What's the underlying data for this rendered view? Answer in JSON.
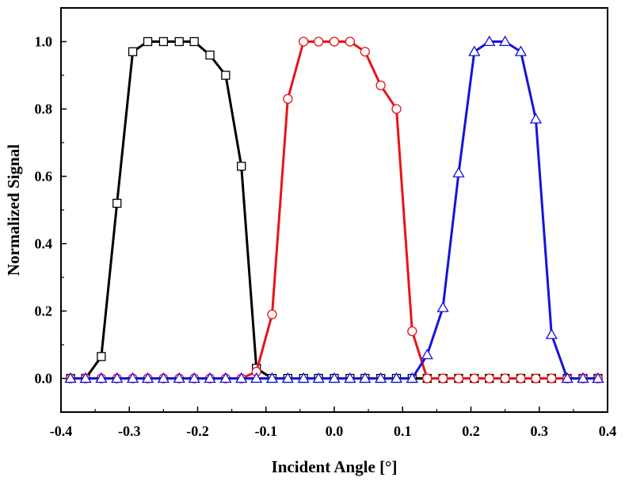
{
  "chart_data": {
    "type": "line",
    "title": "",
    "xlabel": "Incident Angle [°]",
    "ylabel": "Normalized Signal",
    "xlim": [
      -0.4,
      0.4
    ],
    "ylim": [
      -0.1,
      1.1
    ],
    "xticks": [
      -0.4,
      -0.3,
      -0.2,
      -0.1,
      0.0,
      0.1,
      0.2,
      0.3,
      0.4
    ],
    "xtick_labels": [
      "-0.4",
      "-0.3",
      "-0.2",
      "-0.1",
      "0.0",
      "0.1",
      "0.2",
      "0.3",
      "0.4"
    ],
    "yticks": [
      0.0,
      0.2,
      0.4,
      0.6,
      0.8,
      1.0
    ],
    "ytick_labels": [
      "0.0",
      "0.2",
      "0.4",
      "0.6",
      "0.8",
      "1.0"
    ],
    "grid": false,
    "legend": "none",
    "series": [
      {
        "color": "#000000",
        "marker": "square",
        "x": [
          -0.386,
          -0.364,
          -0.341,
          -0.318,
          -0.295,
          -0.273,
          -0.25,
          -0.227,
          -0.205,
          -0.182,
          -0.159,
          -0.136,
          -0.114,
          -0.091,
          -0.068,
          -0.045,
          -0.023,
          0.0,
          0.023,
          0.045,
          0.068,
          0.091,
          0.114,
          0.136,
          0.159,
          0.182,
          0.205,
          0.227,
          0.25,
          0.273,
          0.295,
          0.318,
          0.341,
          0.364,
          0.386
        ],
        "y": [
          0.0,
          0.0,
          0.065,
          0.52,
          0.97,
          1.0,
          1.0,
          1.0,
          1.0,
          0.96,
          0.9,
          0.63,
          0.03,
          0.0,
          0.0,
          0.0,
          0.0,
          0.0,
          0.0,
          0.0,
          0.0,
          0.0,
          0.0,
          0.0,
          0.0,
          0.0,
          0.0,
          0.0,
          0.0,
          0.0,
          0.0,
          0.0,
          0.0,
          0.0,
          0.0
        ]
      },
      {
        "color": "#e8141a",
        "marker": "circle",
        "x": [
          -0.386,
          -0.364,
          -0.341,
          -0.318,
          -0.295,
          -0.273,
          -0.25,
          -0.227,
          -0.205,
          -0.182,
          -0.159,
          -0.136,
          -0.114,
          -0.091,
          -0.068,
          -0.045,
          -0.023,
          0.0,
          0.023,
          0.045,
          0.068,
          0.091,
          0.114,
          0.136,
          0.159,
          0.182,
          0.205,
          0.227,
          0.25,
          0.273,
          0.295,
          0.318,
          0.341,
          0.364,
          0.386
        ],
        "y": [
          0.0,
          0.0,
          0.0,
          0.0,
          0.0,
          0.0,
          0.0,
          0.0,
          0.0,
          0.0,
          0.0,
          0.0,
          0.02,
          0.19,
          0.83,
          1.0,
          1.0,
          1.0,
          1.0,
          0.97,
          0.87,
          0.8,
          0.14,
          0.0,
          0.0,
          0.0,
          0.0,
          0.0,
          0.0,
          0.0,
          0.0,
          0.0,
          0.0,
          0.0,
          0.0
        ]
      },
      {
        "color": "#1515d8",
        "marker": "triangle",
        "x": [
          -0.386,
          -0.364,
          -0.341,
          -0.318,
          -0.295,
          -0.273,
          -0.25,
          -0.227,
          -0.205,
          -0.182,
          -0.159,
          -0.136,
          -0.114,
          -0.091,
          -0.068,
          -0.045,
          -0.023,
          0.0,
          0.023,
          0.045,
          0.068,
          0.091,
          0.114,
          0.136,
          0.159,
          0.182,
          0.205,
          0.227,
          0.25,
          0.273,
          0.295,
          0.318,
          0.341,
          0.364,
          0.386
        ],
        "y": [
          0.0,
          0.0,
          0.0,
          0.0,
          0.0,
          0.0,
          0.0,
          0.0,
          0.0,
          0.0,
          0.0,
          0.0,
          0.0,
          0.0,
          0.0,
          0.0,
          0.0,
          0.0,
          0.0,
          0.0,
          0.0,
          0.0,
          0.0,
          0.07,
          0.21,
          0.61,
          0.97,
          1.0,
          1.0,
          0.97,
          0.77,
          0.13,
          0.0,
          0.0,
          0.0
        ]
      }
    ]
  }
}
